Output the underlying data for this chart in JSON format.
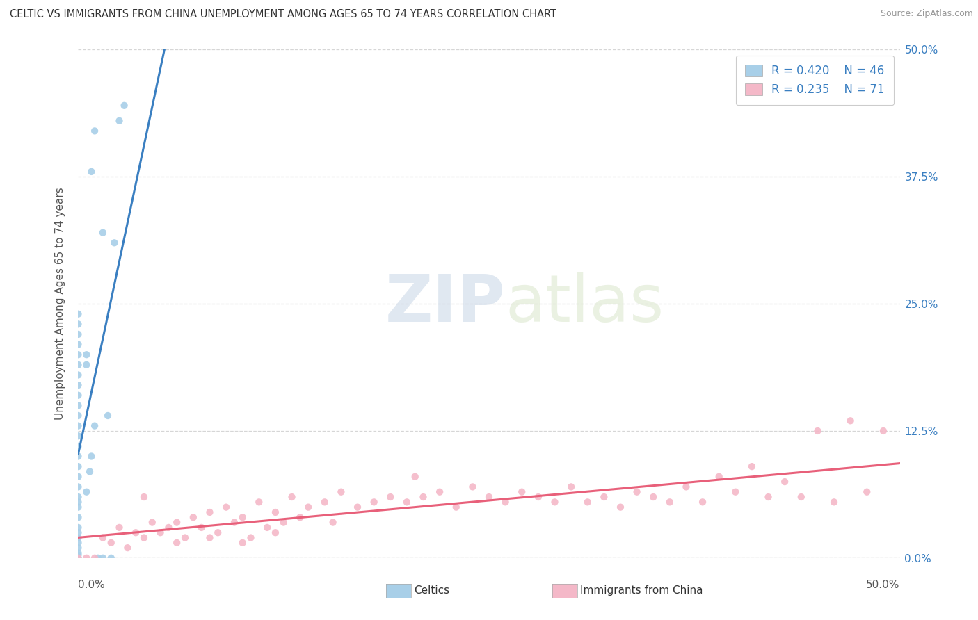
{
  "title": "CELTIC VS IMMIGRANTS FROM CHINA UNEMPLOYMENT AMONG AGES 65 TO 74 YEARS CORRELATION CHART",
  "source": "Source: ZipAtlas.com",
  "ylabel": "Unemployment Among Ages 65 to 74 years",
  "y_ticks_labels": [
    "0.0%",
    "12.5%",
    "25.0%",
    "37.5%",
    "50.0%"
  ],
  "y_tick_vals": [
    0.0,
    12.5,
    25.0,
    37.5,
    50.0
  ],
  "x_range": [
    0.0,
    50.0
  ],
  "y_range": [
    0.0,
    50.0
  ],
  "legend_celtics": "Celtics",
  "legend_china": "Immigrants from China",
  "R_celtics": 0.42,
  "N_celtics": 46,
  "R_china": 0.235,
  "N_china": 71,
  "celtics_color": "#a8cfe8",
  "china_color": "#f4b8c8",
  "celtics_line_color": "#3a7fc1",
  "china_line_color": "#e8607a",
  "celtics_scatter": [
    [
      0.0,
      0.0
    ],
    [
      0.0,
      0.3
    ],
    [
      0.0,
      0.5
    ],
    [
      0.0,
      1.0
    ],
    [
      0.0,
      1.5
    ],
    [
      0.0,
      2.0
    ],
    [
      0.0,
      2.5
    ],
    [
      0.0,
      3.0
    ],
    [
      0.0,
      4.0
    ],
    [
      0.0,
      5.0
    ],
    [
      0.0,
      5.5
    ],
    [
      0.0,
      6.0
    ],
    [
      0.0,
      7.0
    ],
    [
      0.0,
      8.0
    ],
    [
      0.0,
      9.0
    ],
    [
      0.0,
      10.0
    ],
    [
      0.0,
      11.0
    ],
    [
      0.0,
      12.0
    ],
    [
      0.0,
      13.0
    ],
    [
      0.0,
      14.0
    ],
    [
      0.0,
      15.0
    ],
    [
      0.0,
      16.0
    ],
    [
      0.0,
      17.0
    ],
    [
      0.0,
      18.0
    ],
    [
      0.0,
      19.0
    ],
    [
      0.0,
      20.0
    ],
    [
      0.0,
      21.0
    ],
    [
      0.0,
      22.0
    ],
    [
      0.0,
      23.0
    ],
    [
      0.0,
      24.0
    ],
    [
      0.5,
      6.5
    ],
    [
      0.5,
      19.0
    ],
    [
      0.5,
      20.0
    ],
    [
      0.7,
      8.5
    ],
    [
      0.8,
      10.0
    ],
    [
      1.0,
      13.0
    ],
    [
      1.2,
      0.0
    ],
    [
      1.5,
      0.0
    ],
    [
      1.8,
      14.0
    ],
    [
      2.0,
      0.0
    ],
    [
      2.2,
      31.0
    ],
    [
      2.5,
      43.0
    ],
    [
      2.8,
      44.5
    ],
    [
      1.0,
      42.0
    ],
    [
      0.8,
      38.0
    ],
    [
      1.5,
      32.0
    ]
  ],
  "china_scatter": [
    [
      0.0,
      0.0
    ],
    [
      0.5,
      0.0
    ],
    [
      1.0,
      0.0
    ],
    [
      1.5,
      2.0
    ],
    [
      2.0,
      1.5
    ],
    [
      2.5,
      3.0
    ],
    [
      3.0,
      1.0
    ],
    [
      3.5,
      2.5
    ],
    [
      4.0,
      2.0
    ],
    [
      4.5,
      3.5
    ],
    [
      5.0,
      2.5
    ],
    [
      5.5,
      3.0
    ],
    [
      6.0,
      3.5
    ],
    [
      6.5,
      2.0
    ],
    [
      7.0,
      4.0
    ],
    [
      7.5,
      3.0
    ],
    [
      8.0,
      4.5
    ],
    [
      8.5,
      2.5
    ],
    [
      9.0,
      5.0
    ],
    [
      9.5,
      3.5
    ],
    [
      10.0,
      4.0
    ],
    [
      10.5,
      2.0
    ],
    [
      11.0,
      5.5
    ],
    [
      11.5,
      3.0
    ],
    [
      12.0,
      4.5
    ],
    [
      12.5,
      3.5
    ],
    [
      13.0,
      6.0
    ],
    [
      13.5,
      4.0
    ],
    [
      14.0,
      5.0
    ],
    [
      15.0,
      5.5
    ],
    [
      15.5,
      3.5
    ],
    [
      16.0,
      6.5
    ],
    [
      17.0,
      5.0
    ],
    [
      18.0,
      5.5
    ],
    [
      19.0,
      6.0
    ],
    [
      20.0,
      5.5
    ],
    [
      20.5,
      8.0
    ],
    [
      21.0,
      6.0
    ],
    [
      22.0,
      6.5
    ],
    [
      23.0,
      5.0
    ],
    [
      24.0,
      7.0
    ],
    [
      25.0,
      6.0
    ],
    [
      26.0,
      5.5
    ],
    [
      27.0,
      6.5
    ],
    [
      28.0,
      6.0
    ],
    [
      29.0,
      5.5
    ],
    [
      30.0,
      7.0
    ],
    [
      31.0,
      5.5
    ],
    [
      32.0,
      6.0
    ],
    [
      33.0,
      5.0
    ],
    [
      34.0,
      6.5
    ],
    [
      35.0,
      6.0
    ],
    [
      36.0,
      5.5
    ],
    [
      37.0,
      7.0
    ],
    [
      38.0,
      5.5
    ],
    [
      39.0,
      8.0
    ],
    [
      40.0,
      6.5
    ],
    [
      41.0,
      9.0
    ],
    [
      42.0,
      6.0
    ],
    [
      43.0,
      7.5
    ],
    [
      44.0,
      6.0
    ],
    [
      45.0,
      12.5
    ],
    [
      46.0,
      5.5
    ],
    [
      47.0,
      13.5
    ],
    [
      48.0,
      6.5
    ],
    [
      49.0,
      12.5
    ],
    [
      4.0,
      6.0
    ],
    [
      6.0,
      1.5
    ],
    [
      8.0,
      2.0
    ],
    [
      10.0,
      1.5
    ],
    [
      12.0,
      2.5
    ]
  ],
  "watermark_zip": "ZIP",
  "watermark_atlas": "atlas",
  "background_color": "#ffffff",
  "grid_color": "#cccccc"
}
